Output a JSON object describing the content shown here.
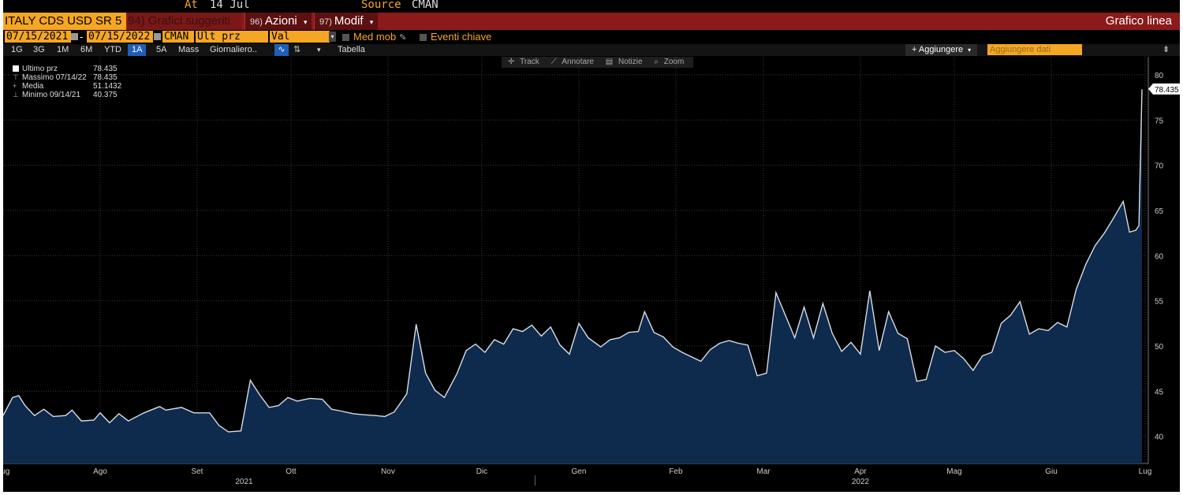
{
  "header": {
    "at_label": "At",
    "at_value": "14 Jul",
    "source_label": "Source",
    "source_value": "CMAN"
  },
  "toolbar": {
    "ticker": "ITALY CDS USD SR 5",
    "suggested": "94) Grafici suggeriti",
    "actions_num": "96)",
    "actions_label": "Azioni",
    "modif_num": "97)",
    "modif_label": "Modif",
    "chart_title": "Grafico linea"
  },
  "controls": {
    "start_date": "07/15/2021",
    "end_date": "07/15/2022",
    "date_separator": "-",
    "source": "CMAN",
    "field": "Ult prz",
    "currency": "Val locale",
    "moving_avg": "Med mob",
    "key_events": "Eventi chiave"
  },
  "periods": [
    "1G",
    "3G",
    "1M",
    "6M",
    "YTD",
    "1A",
    "5A",
    "Mass"
  ],
  "selected_period": "1A",
  "frequency": "Giornaliero..",
  "table_label": "Tabella",
  "add_label": "+ Aggiungere",
  "add_data_placeholder": "Aggiungere dati",
  "tools": [
    "Track",
    "Annotare",
    "Notizie",
    "Zoom"
  ],
  "legend": {
    "last_label": "Ultimo prz",
    "last_value": "78.435",
    "high_label": "Massimo 07/14/22",
    "high_value": "78.435",
    "avg_label": "Media",
    "avg_value": "51.1432",
    "low_label": "Minimo 09/14/21",
    "low_value": "40.375"
  },
  "colors": {
    "background": "#000000",
    "line": "#d9dde6",
    "fill": "#0e2a4d",
    "accent": "#f5a623",
    "bar": "#8b1a1a"
  },
  "chart_data": {
    "type": "area",
    "series_label": "Ultimo prz",
    "last_value_label": "78.435",
    "ylim": [
      37,
      82
    ],
    "yticks": [
      40,
      45,
      50,
      55,
      60,
      65,
      70,
      75,
      80
    ],
    "x_labels": [
      "Lug",
      "Ago",
      "Set",
      "Ott",
      "Nov",
      "Dic",
      "Gen",
      "Feb",
      "Mar",
      "Apr",
      "Mag",
      "Giu",
      "Lug"
    ],
    "x_label_dates": [
      "2021-07-15",
      "2021-08-15",
      "2021-09-15",
      "2021-10-15",
      "2021-11-15",
      "2021-12-15",
      "2022-01-15",
      "2022-02-15",
      "2022-03-15",
      "2022-04-15",
      "2022-05-15",
      "2022-06-15",
      "2022-07-15"
    ],
    "year_labels": [
      "2021",
      "2022"
    ],
    "year_label_dates": [
      "2021-09-30",
      "2022-04-15"
    ],
    "x_start": "2021-07-15",
    "x_end": "2022-07-15",
    "points": [
      [
        "2021-07-15",
        42.3
      ],
      [
        "2021-07-18",
        44.3
      ],
      [
        "2021-07-20",
        44.5
      ],
      [
        "2021-07-22",
        43.4
      ],
      [
        "2021-07-25",
        42.3
      ],
      [
        "2021-07-28",
        43.0
      ],
      [
        "2021-07-31",
        42.2
      ],
      [
        "2021-08-04",
        42.3
      ],
      [
        "2021-08-06",
        42.9
      ],
      [
        "2021-08-09",
        41.7
      ],
      [
        "2021-08-13",
        41.8
      ],
      [
        "2021-08-15",
        42.6
      ],
      [
        "2021-08-18",
        41.5
      ],
      [
        "2021-08-21",
        42.5
      ],
      [
        "2021-08-24",
        41.7
      ],
      [
        "2021-08-29",
        42.6
      ],
      [
        "2021-09-03",
        43.3
      ],
      [
        "2021-09-05",
        42.9
      ],
      [
        "2021-09-10",
        43.2
      ],
      [
        "2021-09-14",
        42.6
      ],
      [
        "2021-09-19",
        42.6
      ],
      [
        "2021-09-22",
        41.2
      ],
      [
        "2021-09-25",
        40.5
      ],
      [
        "2021-09-29",
        40.6
      ],
      [
        "2021-10-02",
        46.2
      ],
      [
        "2021-10-05",
        44.6
      ],
      [
        "2021-10-08",
        43.2
      ],
      [
        "2021-10-11",
        43.4
      ],
      [
        "2021-10-14",
        44.3
      ],
      [
        "2021-10-17",
        43.9
      ],
      [
        "2021-10-21",
        44.2
      ],
      [
        "2021-10-25",
        44.1
      ],
      [
        "2021-10-28",
        43.0
      ],
      [
        "2021-10-31",
        42.8
      ],
      [
        "2021-11-04",
        42.5
      ],
      [
        "2021-11-07",
        42.4
      ],
      [
        "2021-11-11",
        42.3
      ],
      [
        "2021-11-14",
        42.2
      ],
      [
        "2021-11-17",
        42.7
      ],
      [
        "2021-11-21",
        44.7
      ],
      [
        "2021-11-24",
        52.4
      ],
      [
        "2021-11-27",
        47.0
      ],
      [
        "2021-11-30",
        45.1
      ],
      [
        "2021-12-03",
        44.3
      ],
      [
        "2021-12-07",
        46.9
      ],
      [
        "2021-12-10",
        49.5
      ],
      [
        "2021-12-13",
        50.2
      ],
      [
        "2021-12-16",
        49.3
      ],
      [
        "2021-12-19",
        50.7
      ],
      [
        "2021-12-22",
        50.2
      ],
      [
        "2021-12-25",
        51.9
      ],
      [
        "2021-12-28",
        51.6
      ],
      [
        "2021-12-31",
        52.3
      ],
      [
        "2022-01-03",
        51.1
      ],
      [
        "2022-01-06",
        52.1
      ],
      [
        "2022-01-09",
        50.1
      ],
      [
        "2022-01-12",
        49.1
      ],
      [
        "2022-01-15",
        52.5
      ],
      [
        "2022-01-18",
        50.9
      ],
      [
        "2022-01-22",
        49.9
      ],
      [
        "2022-01-25",
        50.7
      ],
      [
        "2022-01-28",
        50.9
      ],
      [
        "2022-01-31",
        51.5
      ],
      [
        "2022-02-03",
        51.6
      ],
      [
        "2022-02-05",
        53.8
      ],
      [
        "2022-02-08",
        51.5
      ],
      [
        "2022-02-11",
        51.0
      ],
      [
        "2022-02-14",
        49.9
      ],
      [
        "2022-02-17",
        49.3
      ],
      [
        "2022-02-20",
        48.8
      ],
      [
        "2022-02-23",
        48.3
      ],
      [
        "2022-02-26",
        49.6
      ],
      [
        "2022-03-01",
        50.3
      ],
      [
        "2022-03-04",
        50.6
      ],
      [
        "2022-03-07",
        50.3
      ],
      [
        "2022-03-10",
        50.1
      ],
      [
        "2022-03-13",
        46.7
      ],
      [
        "2022-03-16",
        47.0
      ],
      [
        "2022-03-19",
        55.9
      ],
      [
        "2022-03-22",
        53.4
      ],
      [
        "2022-03-25",
        50.9
      ],
      [
        "2022-03-28",
        54.3
      ],
      [
        "2022-03-31",
        50.9
      ],
      [
        "2022-04-03",
        54.7
      ],
      [
        "2022-04-06",
        51.4
      ],
      [
        "2022-04-09",
        49.4
      ],
      [
        "2022-04-12",
        50.4
      ],
      [
        "2022-04-15",
        49.1
      ],
      [
        "2022-04-18",
        56.1
      ],
      [
        "2022-04-21",
        49.5
      ],
      [
        "2022-04-24",
        53.8
      ],
      [
        "2022-04-27",
        51.4
      ],
      [
        "2022-04-30",
        50.8
      ],
      [
        "2022-05-03",
        46.1
      ],
      [
        "2022-05-06",
        46.3
      ],
      [
        "2022-05-09",
        50.0
      ],
      [
        "2022-05-12",
        49.3
      ],
      [
        "2022-05-15",
        49.5
      ],
      [
        "2022-05-18",
        48.6
      ],
      [
        "2022-05-21",
        47.3
      ],
      [
        "2022-05-24",
        48.9
      ],
      [
        "2022-05-27",
        49.3
      ],
      [
        "2022-05-30",
        52.5
      ],
      [
        "2022-06-02",
        53.4
      ],
      [
        "2022-06-05",
        54.9
      ],
      [
        "2022-06-08",
        51.3
      ],
      [
        "2022-06-11",
        51.9
      ],
      [
        "2022-06-14",
        51.7
      ],
      [
        "2022-06-17",
        52.6
      ],
      [
        "2022-06-20",
        52.1
      ],
      [
        "2022-06-23",
        56.3
      ],
      [
        "2022-06-26",
        59.0
      ],
      [
        "2022-06-29",
        61.1
      ],
      [
        "2022-07-02",
        62.5
      ],
      [
        "2022-07-05",
        64.2
      ],
      [
        "2022-07-08",
        66.0
      ],
      [
        "2022-07-10",
        62.6
      ],
      [
        "2022-07-12",
        62.8
      ],
      [
        "2022-07-13",
        63.3
      ],
      [
        "2022-07-14",
        78.4
      ]
    ]
  }
}
